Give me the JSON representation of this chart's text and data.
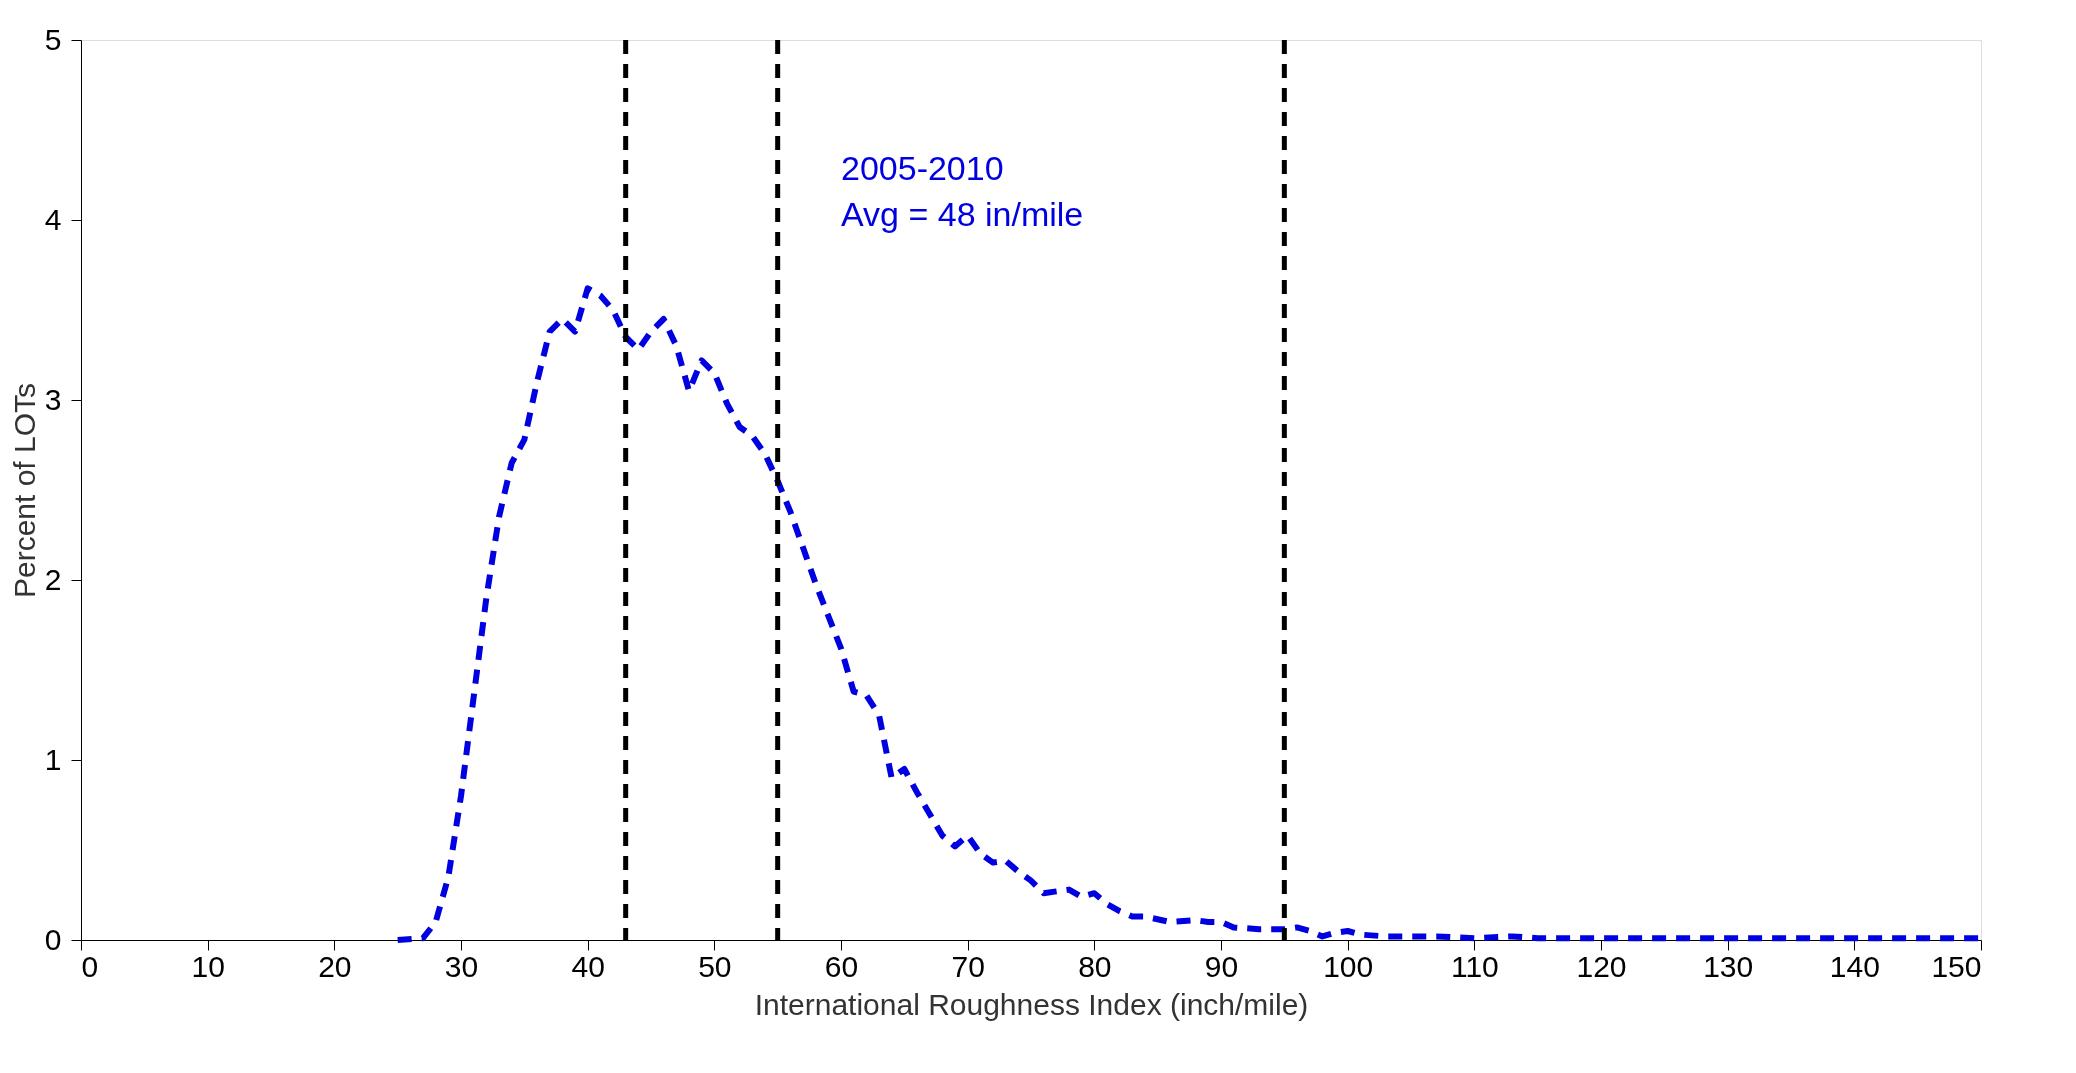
{
  "chart_data": {
    "type": "line",
    "xlabel": "International Roughness Index (inch/mile)",
    "ylabel": "Percent of LOTs",
    "x": [
      25,
      27,
      28,
      29,
      30,
      31,
      32,
      33,
      34,
      35,
      36,
      37,
      38,
      39,
      40,
      41,
      42,
      43,
      44,
      45,
      46,
      47,
      48,
      49,
      50,
      51,
      52,
      53,
      54,
      55,
      56,
      57,
      58,
      59,
      60,
      61,
      62,
      63,
      64,
      65,
      66,
      67,
      68,
      69,
      70,
      71,
      72,
      73,
      74,
      75,
      76,
      77,
      78,
      79,
      80,
      81,
      82,
      83,
      84,
      86,
      88,
      89,
      90,
      91,
      93,
      95,
      96,
      97,
      98,
      99,
      100,
      101,
      103,
      105,
      107,
      110,
      113,
      115,
      120,
      130,
      140,
      150
    ],
    "series": [
      {
        "color": "#0000e0",
        "values": [
          0,
          0.01,
          0.1,
          0.35,
          0.8,
          1.35,
          1.9,
          2.35,
          2.65,
          2.78,
          3.1,
          3.38,
          3.45,
          3.38,
          3.62,
          3.58,
          3.5,
          3.35,
          3.28,
          3.38,
          3.45,
          3.3,
          3.05,
          3.22,
          3.15,
          2.98,
          2.85,
          2.8,
          2.7,
          2.55,
          2.38,
          2.18,
          1.98,
          1.8,
          1.62,
          1.38,
          1.36,
          1.25,
          0.9,
          0.95,
          0.82,
          0.7,
          0.58,
          0.52,
          0.58,
          0.48,
          0.43,
          0.44,
          0.38,
          0.33,
          0.26,
          0.27,
          0.28,
          0.24,
          0.26,
          0.2,
          0.16,
          0.13,
          0.13,
          0.1,
          0.11,
          0.1,
          0.1,
          0.07,
          0.06,
          0.06,
          0.07,
          0.05,
          0.02,
          0.04,
          0.05,
          0.03,
          0.02,
          0.02,
          0.02,
          0.01,
          0.02,
          0.01,
          0.01,
          0.01,
          0.01,
          0.01
        ]
      }
    ],
    "line_style": "dashed",
    "marker": "none",
    "grid": false,
    "xlim": [
      0,
      150
    ],
    "xticks": [
      0,
      10,
      20,
      30,
      40,
      50,
      60,
      70,
      80,
      90,
      100,
      110,
      120,
      130,
      140,
      150
    ],
    "ylim": [
      0,
      5
    ],
    "yticks": [
      0,
      1,
      2,
      3,
      4,
      5
    ],
    "ref_lines": [
      {
        "axis": "x",
        "value": 43,
        "color": "#000000",
        "line_style": "dashed"
      },
      {
        "axis": "x",
        "value": 55,
        "color": "#000000",
        "line_style": "dashed"
      },
      {
        "axis": "x",
        "value": 95,
        "color": "#000000",
        "line_style": "dashed"
      }
    ],
    "annotations": [
      "2005-2010",
      "Avg = 48 in/mile"
    ]
  }
}
